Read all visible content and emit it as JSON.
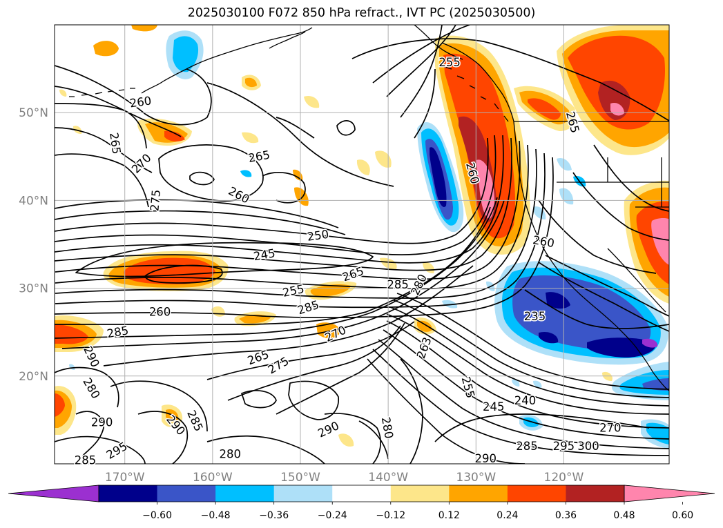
{
  "title": "2025030100 F072 850 hPa refract., IVT PC (2025030500)",
  "colors": {
    "contour_line": "#000000",
    "coast": "#000000",
    "grid": "#b0b0b0",
    "tick_label": "#808080",
    "frame": "#000000"
  },
  "map": {
    "projection": "lat-lon",
    "lon_range": [
      -178,
      -108
    ],
    "lat_range": [
      10,
      60
    ],
    "lat_ticks": [
      {
        "value": 20,
        "label": "20°N"
      },
      {
        "value": 30,
        "label": "30°N"
      },
      {
        "value": 40,
        "label": "40°N"
      },
      {
        "value": 50,
        "label": "50°N"
      }
    ],
    "lon_ticks": [
      {
        "value": -170,
        "label": "170°W"
      },
      {
        "value": -160,
        "label": "160°W"
      },
      {
        "value": -150,
        "label": "150°W"
      },
      {
        "value": -140,
        "label": "140°W"
      },
      {
        "value": -130,
        "label": "130°W"
      },
      {
        "value": -120,
        "label": "120°W"
      }
    ],
    "grid": true,
    "fields": [
      "850 hPa refractivity (contours)",
      "IVT PC (shaded)"
    ]
  },
  "colorbar": {
    "orientation": "horizontal",
    "extend": "both",
    "bins": [
      {
        "color": "#9b30d0"
      },
      {
        "color": "#00008b"
      },
      {
        "color": "#3a55c8"
      },
      {
        "color": "#00bfff"
      },
      {
        "color": "#aee0f8"
      },
      {
        "color": "#ffffff"
      },
      {
        "color": "#fde68a"
      },
      {
        "color": "#ffa500"
      },
      {
        "color": "#ff4500"
      },
      {
        "color": "#b22222"
      },
      {
        "color": "#ff85ad"
      }
    ],
    "ticks": [
      "−0.60",
      "−0.48",
      "−0.36",
      "−0.24",
      "−0.12",
      "0.12",
      "0.24",
      "0.36",
      "0.48",
      "0.60"
    ]
  },
  "contour_labels": [
    {
      "text": "260",
      "lon": -168.2,
      "lat": 51.2,
      "rot": 8
    },
    {
      "text": "265",
      "lon": -171.1,
      "lat": 46.5,
      "rot": -82
    },
    {
      "text": "270",
      "lon": -168.1,
      "lat": 44.2,
      "rot": 45
    },
    {
      "text": "275",
      "lon": -166.5,
      "lat": 40.0,
      "rot": 85
    },
    {
      "text": "265",
      "lon": -154.7,
      "lat": 45.0,
      "rot": 10
    },
    {
      "text": "260",
      "lon": -157.0,
      "lat": 40.6,
      "rot": -28
    },
    {
      "text": "250",
      "lon": -148.0,
      "lat": 36.0,
      "rot": 8
    },
    {
      "text": "245",
      "lon": -154.1,
      "lat": 33.8,
      "rot": 10
    },
    {
      "text": "255",
      "lon": -150.8,
      "lat": 29.7,
      "rot": 12
    },
    {
      "text": "265",
      "lon": -144.0,
      "lat": 31.6,
      "rot": 20
    },
    {
      "text": "260",
      "lon": -166.0,
      "lat": 27.3,
      "rot": 0
    },
    {
      "text": "285",
      "lon": -149.1,
      "lat": 27.8,
      "rot": 18
    },
    {
      "text": "285",
      "lon": -138.9,
      "lat": 30.4,
      "rot": 0
    },
    {
      "text": "280",
      "lon": -136.5,
      "lat": 30.4,
      "rot": 65
    },
    {
      "text": "285",
      "lon": -170.8,
      "lat": 25.0,
      "rot": 10
    },
    {
      "text": "270",
      "lon": -146.0,
      "lat": 24.8,
      "rot": 25
    },
    {
      "text": "290",
      "lon": -173.8,
      "lat": 22.2,
      "rot": -65
    },
    {
      "text": "265",
      "lon": -154.8,
      "lat": 22.1,
      "rot": 20
    },
    {
      "text": "275",
      "lon": -152.5,
      "lat": 21.2,
      "rot": 30
    },
    {
      "text": "280",
      "lon": -173.8,
      "lat": 18.6,
      "rot": -60
    },
    {
      "text": "263",
      "lon": -135.9,
      "lat": 23.2,
      "rot": 70
    },
    {
      "text": "255",
      "lon": -130.9,
      "lat": 18.7,
      "rot": -75
    },
    {
      "text": "245",
      "lon": -128.0,
      "lat": 16.5,
      "rot": 0
    },
    {
      "text": "240",
      "lon": -124.4,
      "lat": 17.2,
      "rot": 0
    },
    {
      "text": "235",
      "lon": -123.3,
      "lat": 26.8,
      "rot": 0
    },
    {
      "text": "260",
      "lon": -122.3,
      "lat": 35.3,
      "rot": -10
    },
    {
      "text": "260",
      "lon": -130.4,
      "lat": 43.1,
      "rot": -75
    },
    {
      "text": "255",
      "lon": -133.0,
      "lat": 55.7,
      "rot": 0
    },
    {
      "text": "265",
      "lon": -119.0,
      "lat": 48.9,
      "rot": -75
    },
    {
      "text": "290",
      "lon": -172.6,
      "lat": 14.7,
      "rot": 0
    },
    {
      "text": "290",
      "lon": -164.2,
      "lat": 14.4,
      "rot": -50
    },
    {
      "text": "285",
      "lon": -162.0,
      "lat": 14.9,
      "rot": -65
    },
    {
      "text": "295",
      "lon": -170.9,
      "lat": 11.5,
      "rot": 30
    },
    {
      "text": "285",
      "lon": -174.5,
      "lat": 10.4,
      "rot": 0
    },
    {
      "text": "280",
      "lon": -158.0,
      "lat": 11.1,
      "rot": 0
    },
    {
      "text": "290",
      "lon": -146.8,
      "lat": 13.9,
      "rot": 25
    },
    {
      "text": "280",
      "lon": -140.1,
      "lat": 14.1,
      "rot": -80
    },
    {
      "text": "290",
      "lon": -128.9,
      "lat": 10.6,
      "rot": 0
    },
    {
      "text": "285",
      "lon": -124.2,
      "lat": 12.0,
      "rot": 0
    },
    {
      "text": "295",
      "lon": -120.0,
      "lat": 12.0,
      "rot": 0
    },
    {
      "text": "300",
      "lon": -117.2,
      "lat": 12.0,
      "rot": 0
    },
    {
      "text": "270",
      "lon": -114.7,
      "lat": 14.1,
      "rot": 0
    }
  ]
}
